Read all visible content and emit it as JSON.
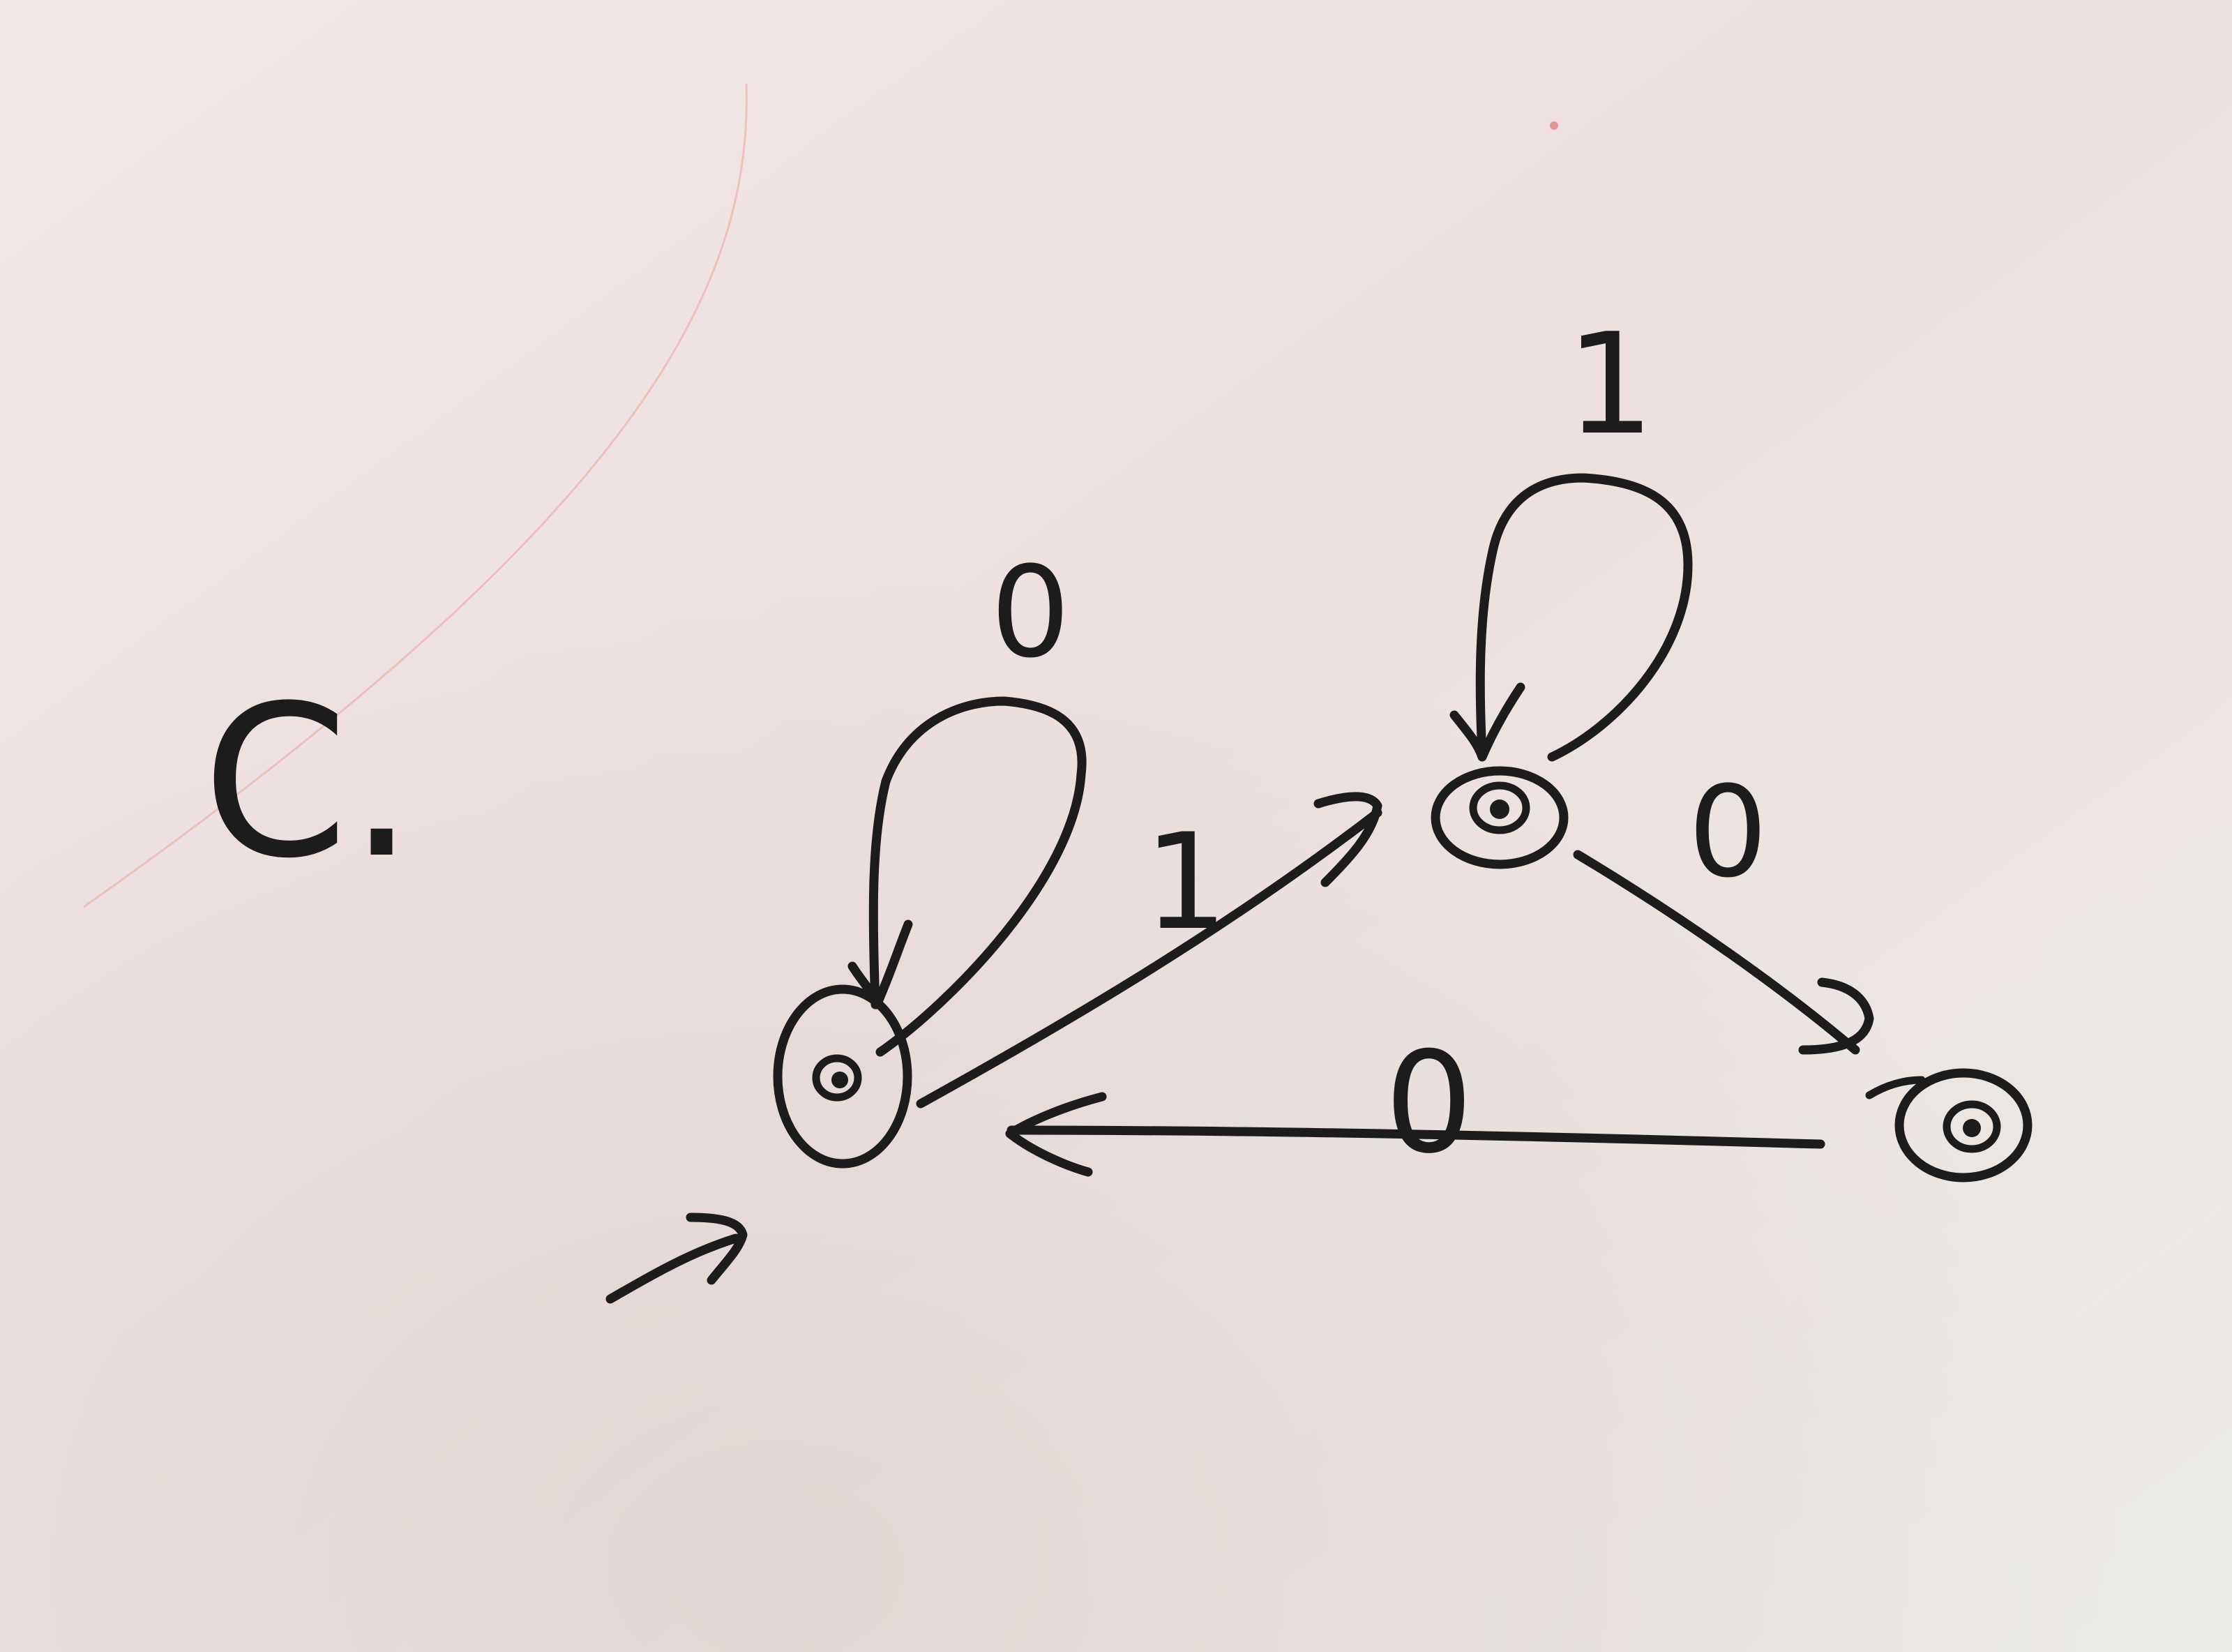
{
  "problem_label": "C.",
  "states": [
    {
      "id": "q0",
      "start": true,
      "accepting": true
    },
    {
      "id": "q1",
      "start": false,
      "accepting": true
    },
    {
      "id": "q2",
      "start": false,
      "accepting": true
    }
  ],
  "transitions": [
    {
      "from": "q0",
      "to": "q0",
      "label": "0"
    },
    {
      "from": "q0",
      "to": "q1",
      "label": "1"
    },
    {
      "from": "q1",
      "to": "q1",
      "label": "1"
    },
    {
      "from": "q1",
      "to": "q2",
      "label": "0"
    },
    {
      "from": "q2",
      "to": "q0",
      "label": "0"
    }
  ],
  "colors": {
    "ink": "#1c1c1c",
    "board_top_left": "#efe3e2",
    "board_bottom_right": "#ecebe6"
  }
}
